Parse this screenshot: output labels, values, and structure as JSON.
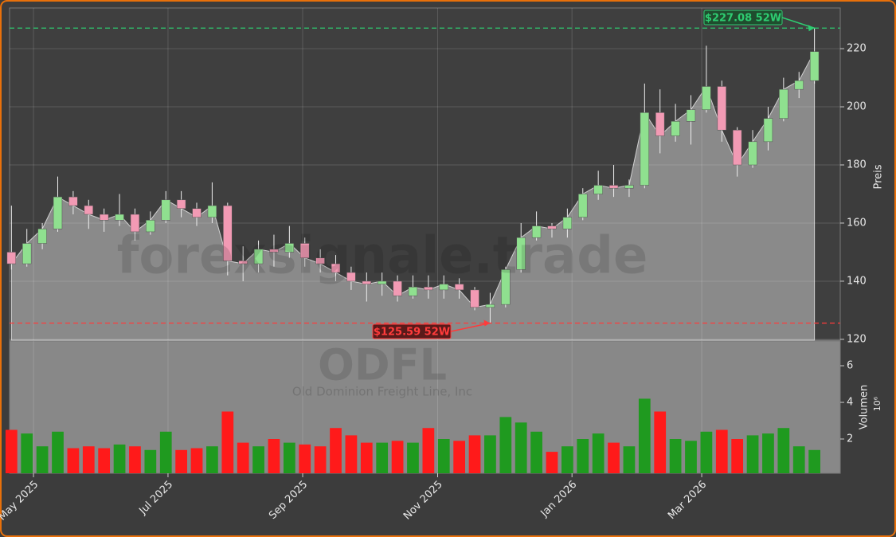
{
  "chart_data": [
    {
      "type": "candlestick",
      "watermark": "forexsignale.trade",
      "ticker": "ODFL",
      "company": "Old Dominion Freight Line, Inc",
      "ylabel": "Preis",
      "categories": [
        null,
        null,
        null,
        null,
        null,
        null,
        null,
        null,
        null,
        null,
        null,
        null,
        null,
        null,
        null,
        null,
        null,
        null,
        null,
        null,
        null,
        null,
        null,
        null,
        null,
        null,
        null,
        null,
        null,
        null,
        null,
        null,
        null,
        null,
        null,
        null,
        null,
        null,
        null,
        null,
        null,
        null,
        null,
        null,
        null,
        null,
        null,
        null,
        null,
        null,
        null,
        null,
        null
      ],
      "open": [
        150,
        146,
        153,
        158,
        169,
        166,
        163,
        161,
        163,
        157,
        161,
        168,
        165,
        162,
        166,
        147,
        146,
        151,
        150,
        153,
        148,
        146,
        143,
        140,
        139,
        140,
        135,
        138,
        137,
        139,
        137,
        131,
        132,
        144,
        155,
        159,
        158,
        162,
        170,
        173,
        172,
        173,
        198,
        190,
        195,
        199,
        207,
        192,
        180,
        188,
        196,
        206,
        209
      ],
      "high": [
        166,
        158,
        160,
        176,
        171,
        168,
        165,
        170,
        165,
        164,
        171,
        171,
        167,
        174,
        167,
        152,
        154,
        156,
        159,
        155,
        151,
        149,
        145,
        143,
        143,
        142,
        142,
        142,
        142,
        141,
        138,
        136,
        145,
        160,
        164,
        160,
        165,
        172,
        178,
        180,
        175,
        208,
        206,
        201,
        204,
        221,
        209,
        193,
        192,
        200,
        210,
        212,
        227.08
      ],
      "low": [
        144,
        145,
        151,
        157,
        163,
        158,
        157,
        159,
        154,
        156,
        160,
        162,
        159,
        160,
        142,
        140,
        143,
        145,
        148,
        145,
        143,
        140,
        137,
        133,
        135,
        133,
        134,
        134,
        134,
        134,
        130,
        125.59,
        131,
        143,
        154,
        155,
        155,
        161,
        168,
        169,
        169,
        172,
        184,
        188,
        187,
        198,
        188,
        176,
        179,
        185,
        195,
        203,
        208
      ],
      "close": [
        146,
        153,
        158,
        169,
        166,
        163,
        161,
        163,
        157,
        161,
        168,
        165,
        162,
        166,
        147,
        146,
        151,
        150,
        153,
        148,
        146,
        143,
        140,
        139,
        140,
        135,
        138,
        137,
        139,
        137,
        131,
        132,
        144,
        155,
        159,
        158,
        162,
        170,
        173,
        172,
        173,
        198,
        190,
        195,
        199,
        207,
        192,
        180,
        188,
        196,
        206,
        209,
        219
      ],
      "up_color": "#8fe08f",
      "down_color": "#f29ab4",
      "xlim": [
        -0.12,
        53.67
      ],
      "xticks": [
        {
          "value": 1.43,
          "label": "May 2025"
        },
        {
          "value": 10.14,
          "label": "Jul 2025"
        },
        {
          "value": 18.86,
          "label": "Sep 2025"
        },
        {
          "value": 27.6,
          "label": "Nov 2025"
        },
        {
          "value": 36.3,
          "label": "Jan 2026"
        },
        {
          "value": 44.7,
          "label": "Mar 2026"
        }
      ],
      "ylim": [
        119.7,
        234
      ],
      "yticks": [
        120,
        140,
        160,
        180,
        200,
        220
      ],
      "grid": true,
      "annotations": [
        {
          "text": "$227.08 52W",
          "value": 227.08,
          "color": "#2ecc71"
        },
        {
          "text": "$125.59 52W",
          "value": 125.59,
          "color": "#ff3b3b"
        }
      ]
    },
    {
      "type": "bar",
      "ylabel": "Volumen",
      "multiplier": "10⁶",
      "values": [
        2.5,
        2.3,
        1.6,
        2.4,
        1.5,
        1.6,
        1.5,
        1.7,
        1.6,
        1.4,
        2.4,
        1.4,
        1.5,
        1.6,
        3.5,
        1.8,
        1.6,
        2.0,
        1.8,
        1.7,
        1.6,
        2.6,
        2.2,
        1.8,
        1.8,
        1.9,
        1.8,
        2.6,
        2.0,
        1.9,
        2.2,
        2.2,
        3.2,
        2.9,
        2.4,
        1.3,
        1.6,
        2.0,
        2.3,
        1.8,
        1.6,
        4.2,
        3.5,
        2.0,
        1.9,
        2.4,
        2.5,
        2.0,
        2.2,
        2.3,
        2.6,
        1.6,
        1.4
      ],
      "up_color": "#1f9a1f",
      "down_color": "#ff1a1a",
      "ylim": [
        0.13,
        7.35
      ],
      "yticks": [
        2,
        4,
        6
      ]
    }
  ]
}
